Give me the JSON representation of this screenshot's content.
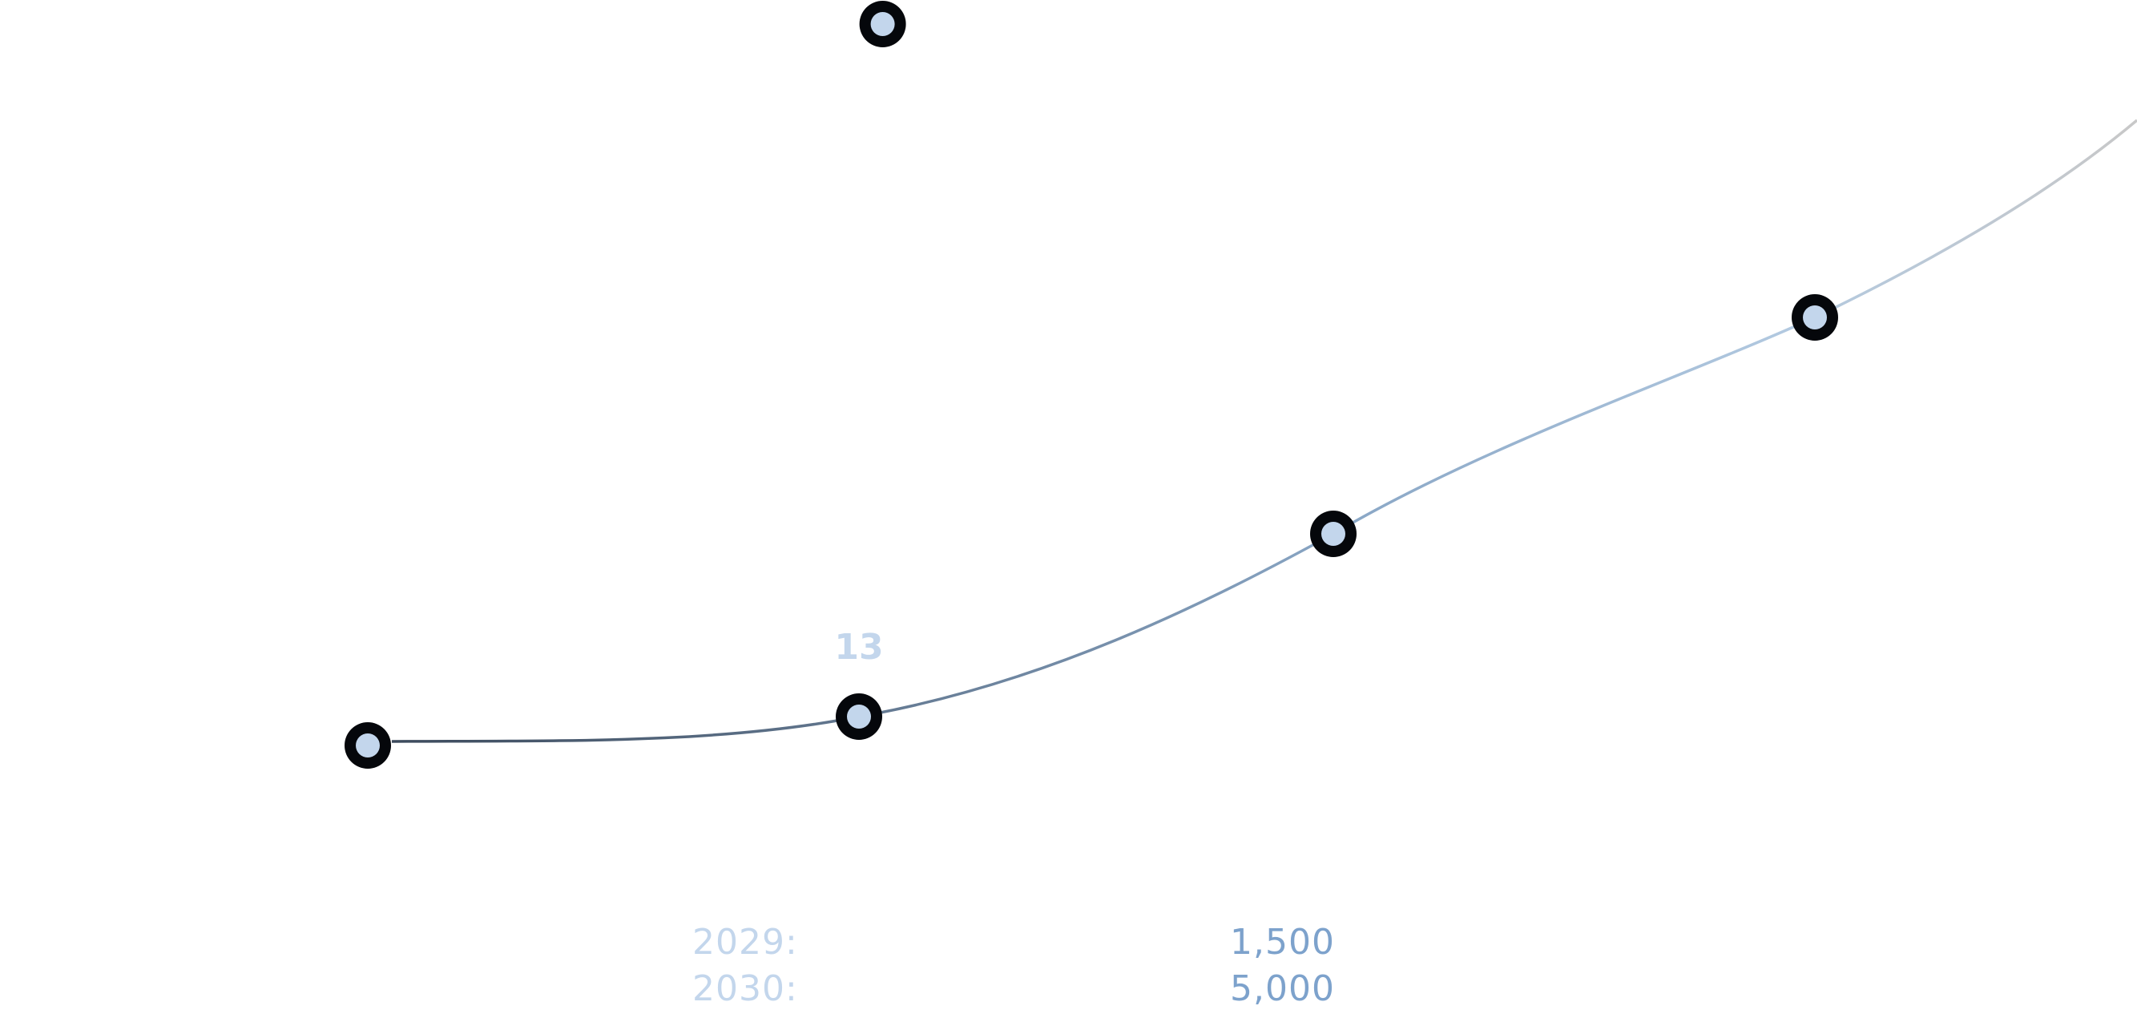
{
  "chart_data": {
    "type": "line",
    "title": "",
    "xlabel": "",
    "ylabel": "",
    "grid": false,
    "series": [
      {
        "points": [
          {
            "x": 1,
            "y": 0
          },
          {
            "x": 2,
            "y": 13
          },
          {
            "x": 3,
            "y": 100
          },
          {
            "x": 4,
            "y": 200
          }
        ]
      }
    ],
    "extra_point": {
      "x": 2.05,
      "y": 331
    },
    "point_labels": [
      {
        "point_index": 1,
        "text": "13"
      }
    ],
    "colors": {
      "line_start": "#3c4a5c",
      "line_mid": "#8aa7c6",
      "line_end": "#c8c8c8",
      "dot_ring": "#05070b",
      "dot_fill": "#c3d6ec"
    }
  },
  "legend": {
    "rows": [
      {
        "year": "2029:",
        "value": "1,500"
      },
      {
        "year": "2030:",
        "value": "5,000"
      }
    ]
  }
}
